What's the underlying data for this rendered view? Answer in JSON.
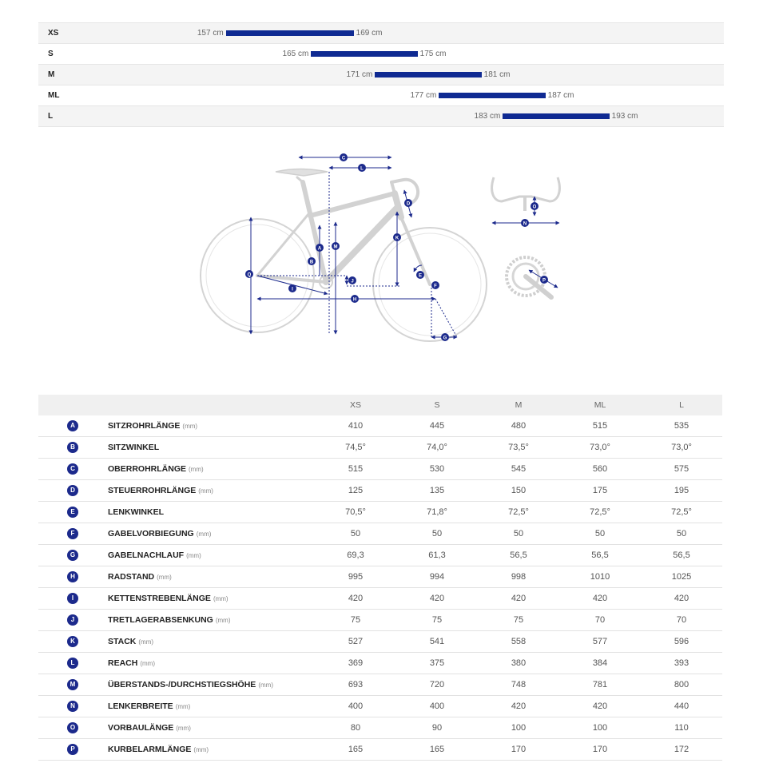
{
  "size_chart": {
    "scale_min": 150,
    "scale_max": 200,
    "rows": [
      {
        "size": "XS",
        "min": 157,
        "max": 169,
        "min_label": "157 cm",
        "max_label": "169 cm"
      },
      {
        "size": "S",
        "min": 165,
        "max": 175,
        "min_label": "165 cm",
        "max_label": "175 cm"
      },
      {
        "size": "M",
        "min": 171,
        "max": 181,
        "min_label": "171 cm",
        "max_label": "181 cm"
      },
      {
        "size": "ML",
        "min": 177,
        "max": 187,
        "min_label": "177 cm",
        "max_label": "187 cm"
      },
      {
        "size": "L",
        "min": 183,
        "max": 193,
        "min_label": "183 cm",
        "max_label": "193 cm"
      }
    ]
  },
  "diagram": {
    "markers": [
      "A",
      "B",
      "C",
      "D",
      "E",
      "F",
      "G",
      "H",
      "I",
      "J",
      "K",
      "L",
      "M",
      "N",
      "O",
      "P",
      "Q"
    ],
    "colors": {
      "frame": "#d4d4d4",
      "dimension": "#1c2a8c"
    }
  },
  "table": {
    "columns": [
      "XS",
      "S",
      "M",
      "ML",
      "L"
    ],
    "rows": [
      {
        "letter": "A",
        "name": "SITZROHRLÄNGE",
        "unit": "(mm)",
        "values": [
          "410",
          "445",
          "480",
          "515",
          "535"
        ]
      },
      {
        "letter": "B",
        "name": "SITZWINKEL",
        "unit": "",
        "values": [
          "74,5°",
          "74,0°",
          "73,5°",
          "73,0°",
          "73,0°"
        ]
      },
      {
        "letter": "C",
        "name": "OBERROHRLÄNGE",
        "unit": "(mm)",
        "values": [
          "515",
          "530",
          "545",
          "560",
          "575"
        ]
      },
      {
        "letter": "D",
        "name": "STEUERROHRLÄNGE",
        "unit": "(mm)",
        "values": [
          "125",
          "135",
          "150",
          "175",
          "195"
        ]
      },
      {
        "letter": "E",
        "name": "LENKWINKEL",
        "unit": "",
        "values": [
          "70,5°",
          "71,8°",
          "72,5°",
          "72,5°",
          "72,5°"
        ]
      },
      {
        "letter": "F",
        "name": "GABELVORBIEGUNG",
        "unit": "(mm)",
        "values": [
          "50",
          "50",
          "50",
          "50",
          "50"
        ]
      },
      {
        "letter": "G",
        "name": "GABELNACHLAUF",
        "unit": "(mm)",
        "values": [
          "69,3",
          "61,3",
          "56,5",
          "56,5",
          "56,5"
        ]
      },
      {
        "letter": "H",
        "name": "RADSTAND",
        "unit": "(mm)",
        "values": [
          "995",
          "994",
          "998",
          "1010",
          "1025"
        ]
      },
      {
        "letter": "I",
        "name": "KETTENSTREBENLÄNGE",
        "unit": "(mm)",
        "values": [
          "420",
          "420",
          "420",
          "420",
          "420"
        ]
      },
      {
        "letter": "J",
        "name": "TRETLAGERABSENKUNG",
        "unit": "(mm)",
        "values": [
          "75",
          "75",
          "75",
          "70",
          "70"
        ]
      },
      {
        "letter": "K",
        "name": "STACK",
        "unit": "(mm)",
        "values": [
          "527",
          "541",
          "558",
          "577",
          "596"
        ]
      },
      {
        "letter": "L",
        "name": "REACH",
        "unit": "(mm)",
        "values": [
          "369",
          "375",
          "380",
          "384",
          "393"
        ]
      },
      {
        "letter": "M",
        "name": "ÜBERSTANDS-/DURCHSTIEGSHÖHE",
        "unit": "(mm)",
        "values": [
          "693",
          "720",
          "748",
          "781",
          "800"
        ]
      },
      {
        "letter": "N",
        "name": "LENKERBREITE",
        "unit": "(mm)",
        "values": [
          "400",
          "400",
          "420",
          "420",
          "440"
        ]
      },
      {
        "letter": "O",
        "name": "VORBAULÄNGE",
        "unit": "(mm)",
        "values": [
          "80",
          "90",
          "100",
          "100",
          "110"
        ]
      },
      {
        "letter": "P",
        "name": "KURBELARMLÄNGE",
        "unit": "(mm)",
        "values": [
          "165",
          "165",
          "170",
          "170",
          "172"
        ]
      }
    ]
  }
}
